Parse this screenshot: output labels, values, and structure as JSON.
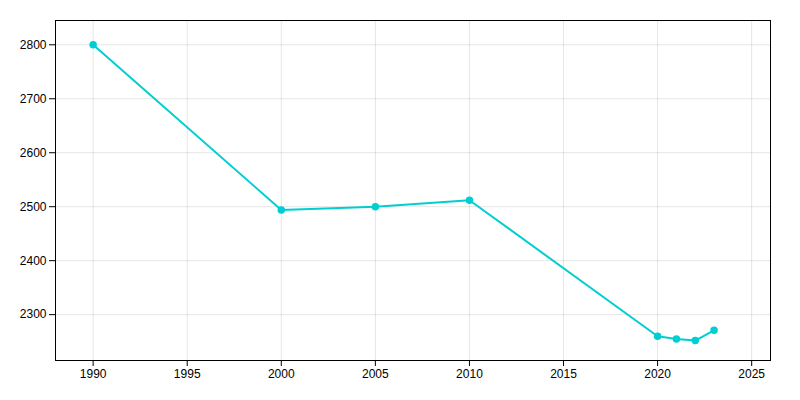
{
  "chart_data": {
    "type": "line",
    "x": [
      1990,
      2000,
      2005,
      2010,
      2020,
      2021,
      2022,
      2023
    ],
    "values": [
      2800,
      2494,
      2500,
      2512,
      2260,
      2255,
      2252,
      2271
    ],
    "color": "#00CED1",
    "marker": "circle",
    "xlim": [
      1988,
      2026
    ],
    "ylim": [
      2215,
      2845
    ],
    "xticks": [
      1990,
      1995,
      2000,
      2005,
      2010,
      2015,
      2020,
      2025
    ],
    "yticks": [
      2300,
      2400,
      2500,
      2600,
      2700,
      2800
    ],
    "grid": true
  }
}
